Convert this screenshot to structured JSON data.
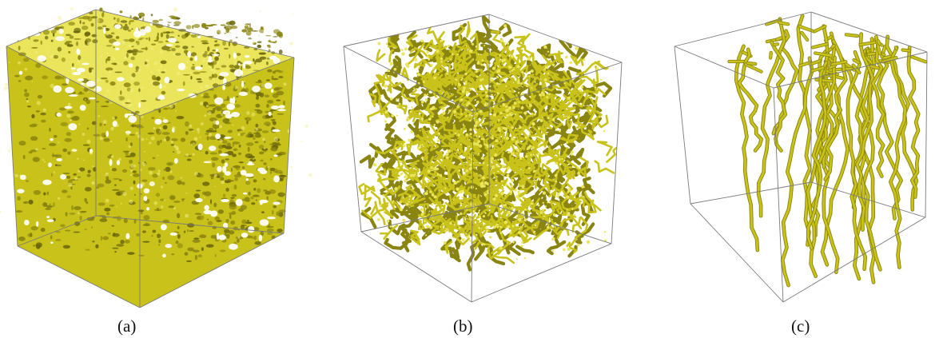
{
  "figure": {
    "panels": [
      {
        "label": "(a)",
        "structure": "dense-porous-solid"
      },
      {
        "label": "(b)",
        "structure": "dense-fiber-network"
      },
      {
        "label": "(c)",
        "structure": "sparse-vertical-fibers"
      }
    ],
    "colors": {
      "structure": "#c8c21a",
      "structure_dark": "#8a8410",
      "structure_light": "#eae55a",
      "box_edge": "#7a7a7a",
      "background": "#ffffff"
    }
  }
}
